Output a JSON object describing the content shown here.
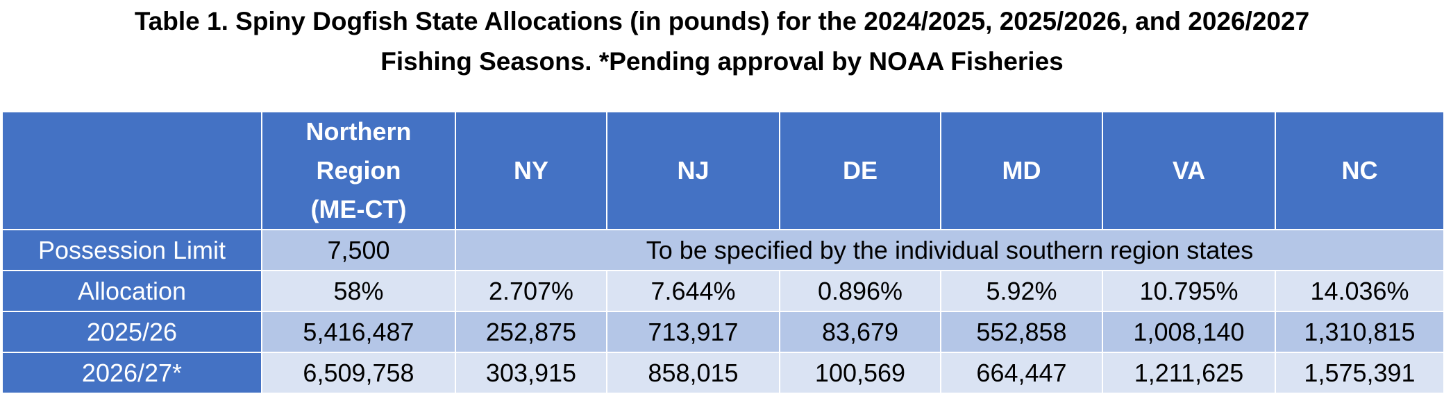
{
  "title": {
    "line1": "Table 1.  Spiny Dogfish State Allocations (in pounds) for the 2024/2025, 2025/2026, and 2026/2027",
    "line2": "Fishing Seasons. *Pending approval by NOAA Fisheries"
  },
  "table": {
    "columns": [
      "",
      "Northern Region (ME-CT)",
      "NY",
      "NJ",
      "DE",
      "MD",
      "VA",
      "NC"
    ],
    "possession_limit": {
      "label": "Possession Limit",
      "northern": "7,500",
      "southern_note": "To be specified by the individual southern region states"
    },
    "rows": [
      {
        "label": "Allocation",
        "values": [
          "58%",
          "2.707%",
          "7.644%",
          "0.896%",
          "5.92%",
          "10.795%",
          "14.036%"
        ]
      },
      {
        "label": "2025/26",
        "values": [
          "5,416,487",
          "252,875",
          "713,917",
          "83,679",
          "552,858",
          "1,008,140",
          "1,310,815"
        ]
      },
      {
        "label": "2026/27*",
        "values": [
          "6,509,758",
          "303,915",
          "858,015",
          "100,569",
          "664,447",
          "1,211,625",
          "1,575,391"
        ]
      }
    ]
  },
  "colors": {
    "header_bg": "#4472c4",
    "row_dark": "#b4c6e7",
    "row_light": "#dae3f3"
  }
}
